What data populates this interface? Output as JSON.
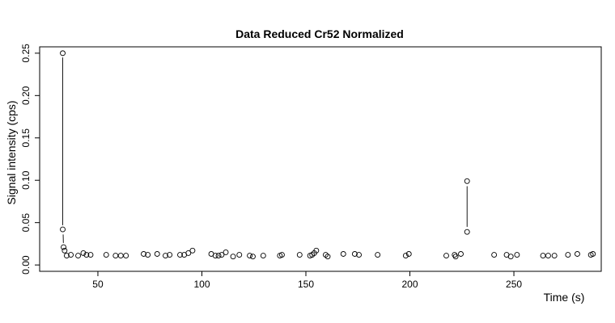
{
  "chart_data": {
    "type": "scatter",
    "title": "Data Reduced Cr52 Normalized",
    "xlabel": "Time (s)",
    "ylabel": "Signal intensity (cps)",
    "xlim": [
      22,
      292
    ],
    "ylim": [
      -0.0075,
      0.2575
    ],
    "xticks": [
      50,
      100,
      150,
      200,
      250
    ],
    "yticks": [
      0.0,
      0.05,
      0.1,
      0.15,
      0.2,
      0.25
    ],
    "xtick_labels": [
      "50",
      "100",
      "150",
      "200",
      "250"
    ],
    "ytick_labels": [
      "0.00",
      "0.05",
      "0.10",
      "0.15",
      "0.20",
      "0.25"
    ],
    "grid": false,
    "legend": "none",
    "points": [
      [
        33.1,
        0.25
      ],
      [
        33.1,
        0.042
      ],
      [
        33.5,
        0.021
      ],
      [
        34.0,
        0.017
      ],
      [
        35.0,
        0.011
      ],
      [
        37.0,
        0.012
      ],
      [
        40.5,
        0.011
      ],
      [
        43.0,
        0.014
      ],
      [
        44.5,
        0.012
      ],
      [
        46.5,
        0.012
      ],
      [
        54.0,
        0.012
      ],
      [
        58.5,
        0.011
      ],
      [
        61.0,
        0.011
      ],
      [
        63.5,
        0.011
      ],
      [
        72.0,
        0.013
      ],
      [
        74.0,
        0.012
      ],
      [
        78.5,
        0.013
      ],
      [
        82.5,
        0.011
      ],
      [
        84.5,
        0.012
      ],
      [
        89.5,
        0.012
      ],
      [
        91.5,
        0.012
      ],
      [
        93.5,
        0.014
      ],
      [
        95.5,
        0.017
      ],
      [
        104.5,
        0.013
      ],
      [
        106.5,
        0.011
      ],
      [
        108.0,
        0.011
      ],
      [
        109.5,
        0.012
      ],
      [
        111.5,
        0.015
      ],
      [
        115.0,
        0.01
      ],
      [
        118.0,
        0.012
      ],
      [
        123.0,
        0.011
      ],
      [
        124.5,
        0.01
      ],
      [
        129.5,
        0.011
      ],
      [
        137.5,
        0.011
      ],
      [
        138.5,
        0.012
      ],
      [
        147.0,
        0.012
      ],
      [
        152.0,
        0.011
      ],
      [
        153.0,
        0.012
      ],
      [
        154.0,
        0.014
      ],
      [
        155.0,
        0.017
      ],
      [
        159.5,
        0.012
      ],
      [
        160.5,
        0.01
      ],
      [
        168.0,
        0.013
      ],
      [
        173.5,
        0.013
      ],
      [
        175.5,
        0.012
      ],
      [
        184.5,
        0.012
      ],
      [
        198.0,
        0.011
      ],
      [
        199.5,
        0.013
      ],
      [
        217.5,
        0.011
      ],
      [
        221.5,
        0.012
      ],
      [
        222.0,
        0.01
      ],
      [
        224.5,
        0.013
      ],
      [
        227.5,
        0.039
      ],
      [
        227.5,
        0.099
      ],
      [
        240.5,
        0.012
      ],
      [
        246.5,
        0.012
      ],
      [
        248.5,
        0.01
      ],
      [
        251.5,
        0.012
      ],
      [
        264.0,
        0.011
      ],
      [
        266.5,
        0.011
      ],
      [
        269.5,
        0.011
      ],
      [
        276.0,
        0.012
      ],
      [
        280.5,
        0.013
      ],
      [
        287.0,
        0.012
      ],
      [
        288.0,
        0.013
      ]
    ],
    "segments": [
      [
        [
          33.1,
          0.245
        ],
        [
          33.1,
          0.047
        ]
      ],
      [
        [
          33.3,
          0.036
        ],
        [
          33.4,
          0.026
        ]
      ],
      [
        [
          227.5,
          0.045
        ],
        [
          227.5,
          0.093
        ]
      ]
    ]
  }
}
